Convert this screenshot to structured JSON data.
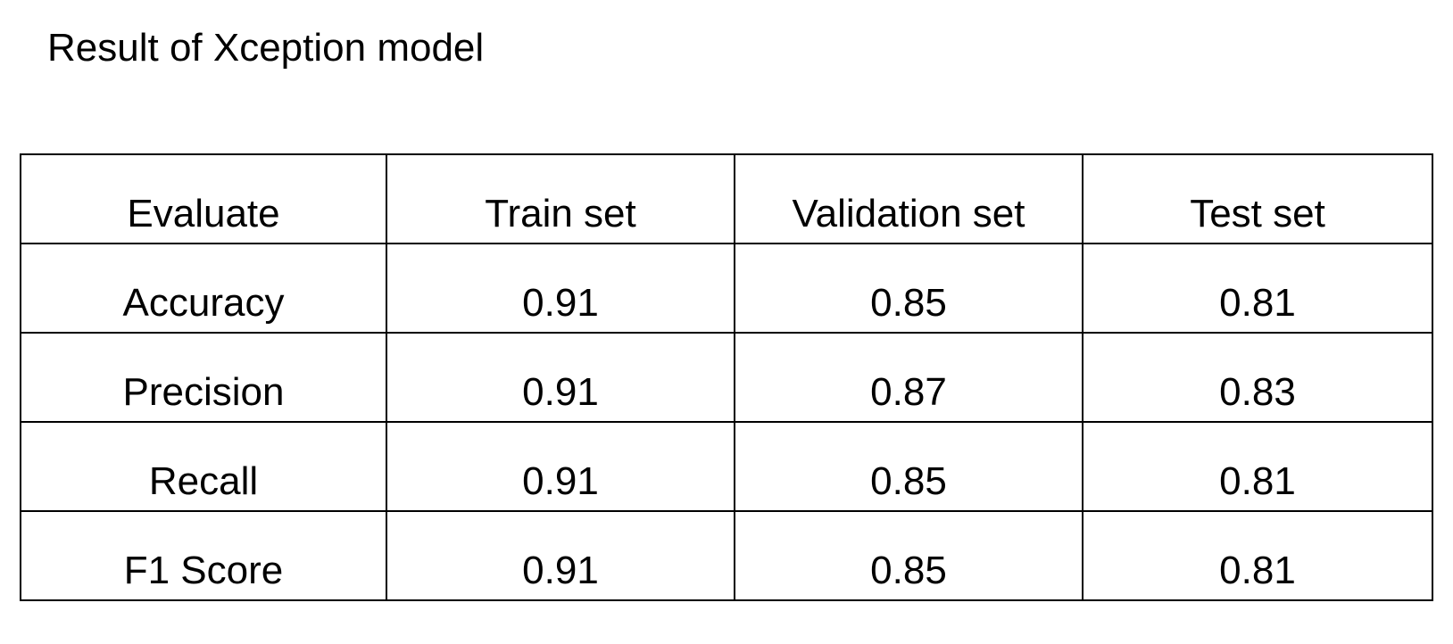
{
  "title": "Result of Xception model",
  "chart_data": {
    "type": "table",
    "columns": [
      "Evaluate",
      "Train set",
      "Validation set",
      "Test set"
    ],
    "rows": [
      [
        "Accuracy",
        "0.91",
        "0.85",
        "0.81"
      ],
      [
        "Precision",
        "0.91",
        "0.87",
        "0.83"
      ],
      [
        "Recall",
        "0.91",
        "0.85",
        "0.81"
      ],
      [
        "F1 Score",
        "0.91",
        "0.85",
        "0.81"
      ]
    ]
  }
}
